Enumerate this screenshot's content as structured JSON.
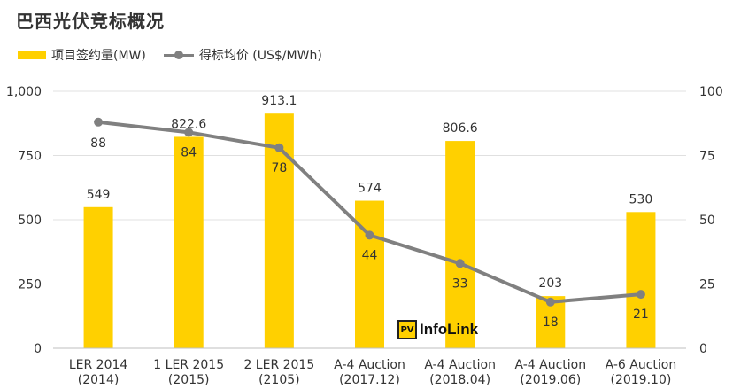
{
  "title": "巴西光伏竞标概况",
  "legend": {
    "bar_label": "项目签约量(MW)",
    "line_label": "得标均价 (US$/MWh)"
  },
  "colors": {
    "bar": "#FFD000",
    "line": "#808080",
    "grid": "#E0E0E0"
  },
  "watermark": {
    "icon_text": "PV",
    "text": "InfoLink"
  },
  "chart_data": {
    "type": "bar",
    "categories": [
      [
        "LER 2014",
        "(2014)"
      ],
      [
        "1 LER 2015",
        "(2015)"
      ],
      [
        "2 LER 2015",
        "(2105)"
      ],
      [
        "A-4 Auction",
        "(2017.12)"
      ],
      [
        "A-4 Auction",
        "(2018.04)"
      ],
      [
        "A-4 Auction",
        "(2019.06)"
      ],
      [
        "A-6 Auction",
        "(2019.10)"
      ]
    ],
    "series": [
      {
        "name": "项目签约量(MW)",
        "type": "bar",
        "axis": "left",
        "values": [
          549,
          822.6,
          913.1,
          574,
          806.6,
          203,
          530
        ],
        "labels": [
          "549",
          "822.6",
          "913.1",
          "574",
          "806.6",
          "203",
          "530"
        ]
      },
      {
        "name": "得标均价 (US$/MWh)",
        "type": "line",
        "axis": "right",
        "values": [
          88,
          84,
          78,
          44,
          33,
          18,
          21
        ],
        "labels": [
          "88",
          "84",
          "78",
          "44",
          "33",
          "18",
          "21"
        ]
      }
    ],
    "y_left": {
      "min": 0,
      "max": 1000,
      "ticks": [
        "0",
        "250",
        "500",
        "750",
        "1,000"
      ],
      "tick_values": [
        0,
        250,
        500,
        750,
        1000
      ]
    },
    "y_right": {
      "min": 0,
      "max": 100,
      "ticks": [
        "0",
        "25",
        "50",
        "75",
        "100"
      ],
      "tick_values": [
        0,
        25,
        50,
        75,
        100
      ]
    },
    "grid": true,
    "legend_position": "top-left"
  }
}
